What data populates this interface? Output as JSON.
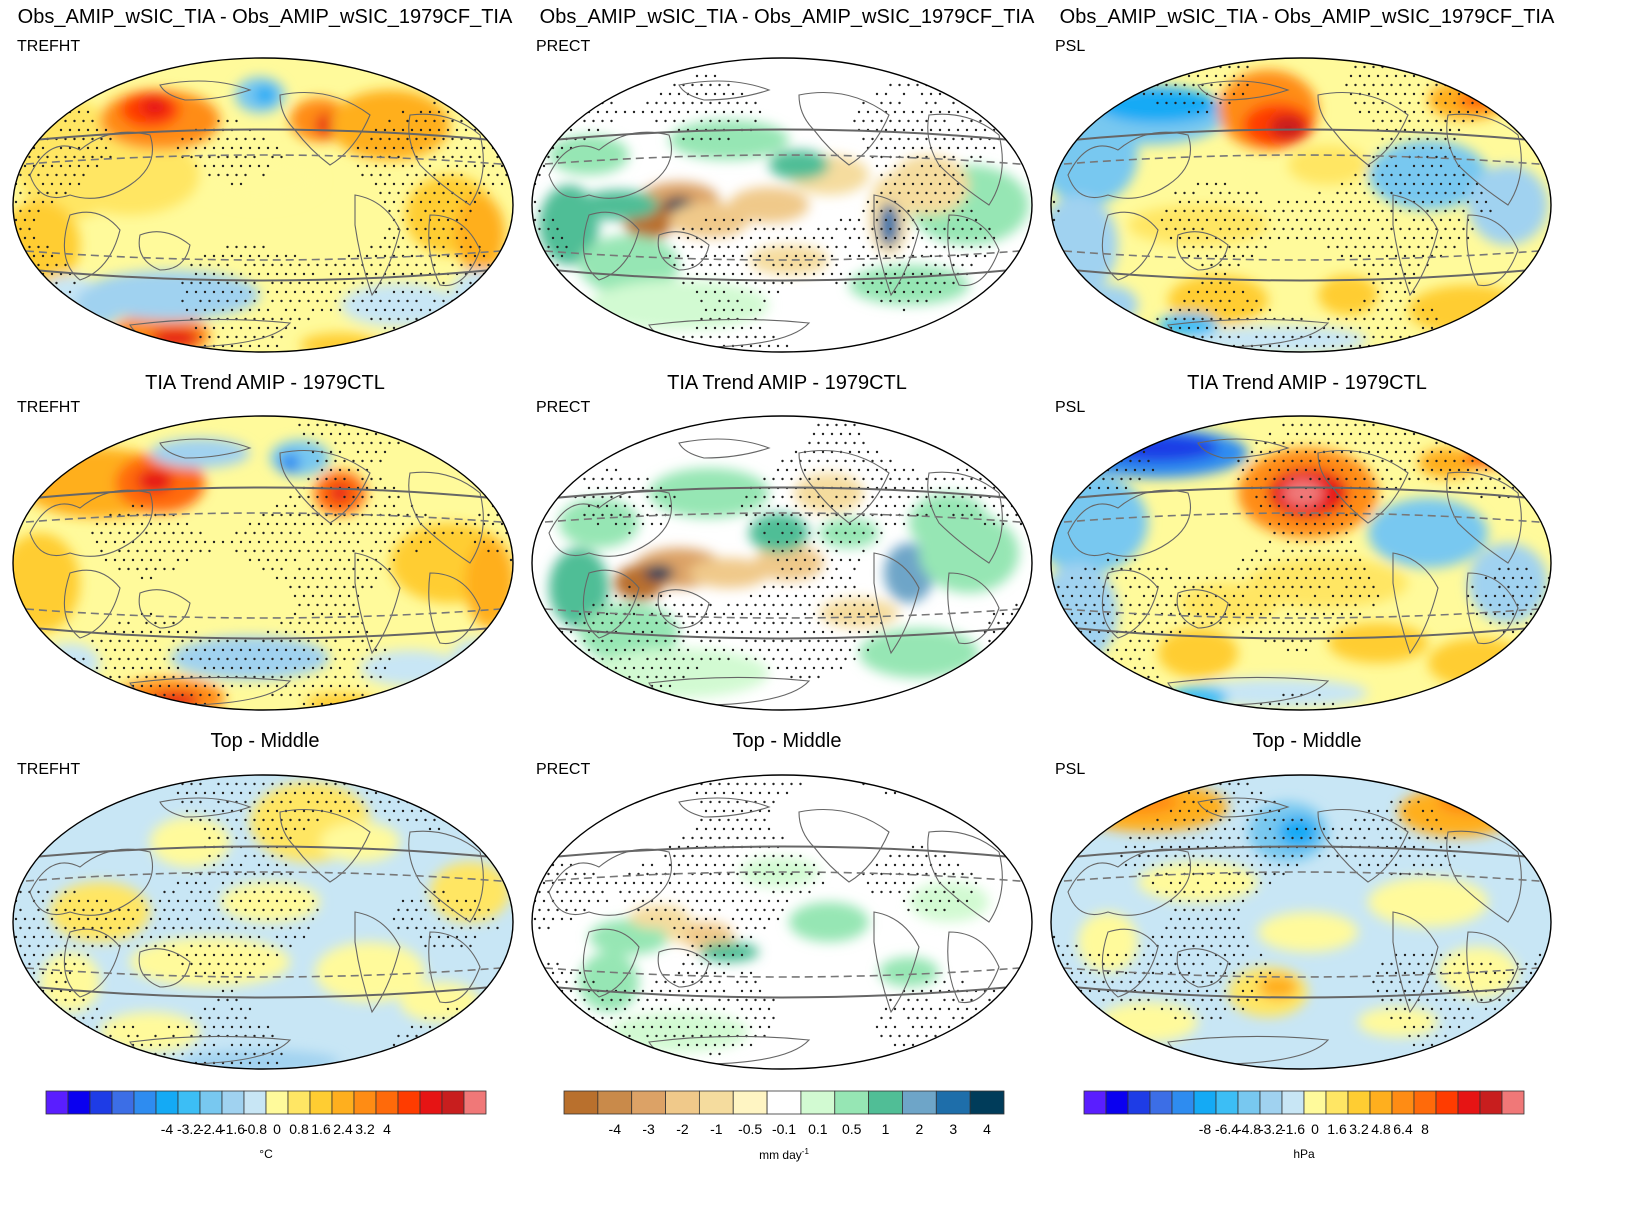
{
  "rows": [
    {
      "titles": [
        "Obs_AMIP_wSIC_TIA - Obs_AMIP_wSIC_1979CF_TIA",
        "Obs_AMIP_wSIC_TIA - Obs_AMIP_wSIC_1979CF_TIA",
        "Obs_AMIP_wSIC_TIA - Obs_AMIP_wSIC_1979CF_TIA"
      ]
    },
    {
      "titles": [
        "TIA Trend AMIP - 1979CTL",
        "TIA Trend AMIP - 1979CTL",
        "TIA Trend AMIP - 1979CTL"
      ]
    },
    {
      "titles": [
        "Top - Middle",
        "Top - Middle",
        "Top - Middle"
      ]
    }
  ],
  "variables": [
    "TREFHT",
    "PRECT",
    "PSL"
  ],
  "colorbars": [
    {
      "variable": "TREFHT",
      "ticks": [
        "-4",
        "-3.2",
        "-2.4",
        "-1.6",
        "-0.8",
        "0",
        "0.8",
        "1.6",
        "2.4",
        "3.2",
        "4"
      ],
      "unit": "°C",
      "colors": [
        "#5a1eff",
        "#0a00f0",
        "#1e3ce6",
        "#3c6ee6",
        "#2e8cf0",
        "#14aaf5",
        "#3cbef5",
        "#78c8f0",
        "#a0d2f0",
        "#c8e6f5",
        "#fffa9b",
        "#ffe664",
        "#ffcd32",
        "#ffaf1e",
        "#ff8c14",
        "#ff6a0a",
        "#ff3c00",
        "#e61414",
        "#c81e1e",
        "#f07878"
      ]
    },
    {
      "variable": "PRECT",
      "ticks": [
        "-4",
        "-3",
        "-2",
        "-1",
        "-0.5",
        "-0.1",
        "0.1",
        "0.5",
        "1",
        "2",
        "3",
        "4"
      ],
      "unit": "mm day",
      "unit_exp": "-1",
      "colors": [
        "#b9702d",
        "#c98a4a",
        "#dca266",
        "#f0c98a",
        "#f5dc9e",
        "#fff5c3",
        "#ffffff",
        "#d2fad2",
        "#96e6b4",
        "#50be96",
        "#6ea5c8",
        "#1e6eaa",
        "#003c5a"
      ]
    },
    {
      "variable": "PSL",
      "ticks": [
        "-8",
        "-6.4",
        "-4.8",
        "-3.2",
        "-1.6",
        "0",
        "1.6",
        "3.2",
        "4.8",
        "6.4",
        "8"
      ],
      "unit": "hPa",
      "colors": [
        "#5a1eff",
        "#0a00f0",
        "#1e3ce6",
        "#3c6ee6",
        "#2e8cf0",
        "#14aaf5",
        "#3cbef5",
        "#78c8f0",
        "#a0d2f0",
        "#c8e6f5",
        "#fffa9b",
        "#ffe664",
        "#ffcd32",
        "#ffaf1e",
        "#ff8c14",
        "#ff6a0a",
        "#ff3c00",
        "#e61414",
        "#c81e1e",
        "#f07878"
      ]
    }
  ]
}
